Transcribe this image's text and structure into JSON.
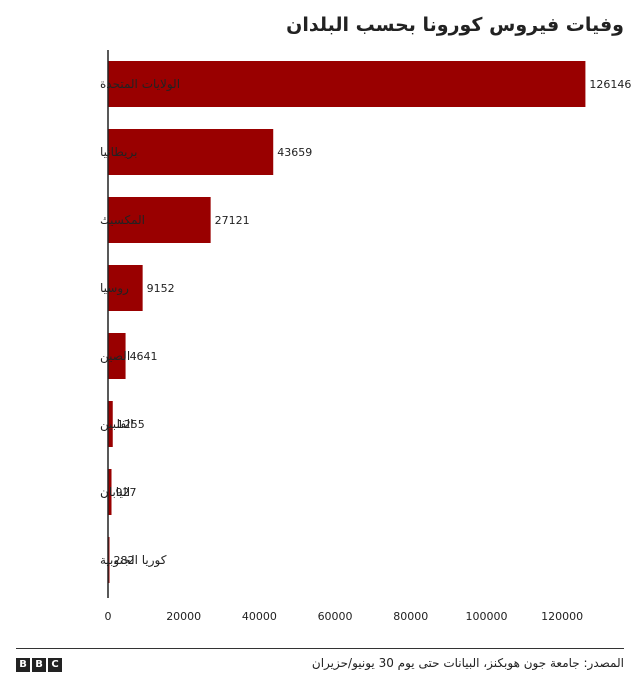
{
  "chart_data": {
    "type": "bar",
    "orientation": "horizontal",
    "title": "وفيات فيروس كورونا بحسب البلدان",
    "categories": [
      "الولايات المتحدة",
      "بريطانيا",
      "المكسيك",
      "روسيا",
      "الصين",
      "الفلبين",
      "اليابان",
      "كوريا الجنوبية"
    ],
    "values": [
      126146,
      43659,
      27121,
      9152,
      4641,
      1255,
      927,
      282
    ],
    "xlim": [
      0,
      130000
    ],
    "xticks": [
      0,
      20000,
      40000,
      60000,
      80000,
      100000,
      120000
    ],
    "grid": false,
    "legend": "none",
    "bar_color": "#990000"
  },
  "footer": {
    "source": "المصدر: جامعة جون هوبكنز، البيانات حتى يوم 30 يونيو/حزيران",
    "logo_letters": [
      "B",
      "B",
      "C"
    ]
  }
}
